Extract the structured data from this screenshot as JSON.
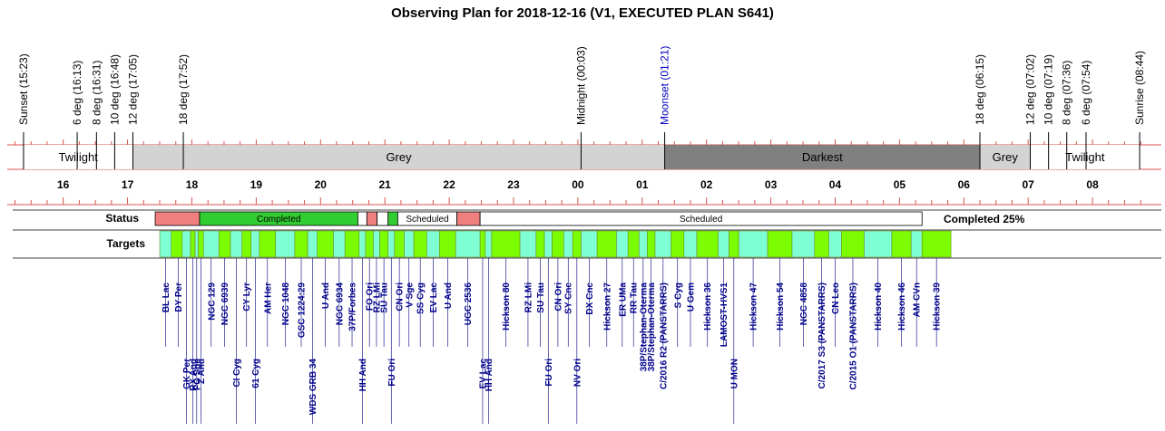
{
  "chart_data": {
    "type": "timeline",
    "title": "Observing Plan for 2018-12-16 (V1, EXECUTED PLAN S641)",
    "axis": {
      "start_hour": 15.13,
      "end_hour": 32.83,
      "hour_labels": [
        {
          "h": 16,
          "label": "16"
        },
        {
          "h": 17,
          "label": "17"
        },
        {
          "h": 18,
          "label": "18"
        },
        {
          "h": 19,
          "label": "19"
        },
        {
          "h": 20,
          "label": "20"
        },
        {
          "h": 21,
          "label": "21"
        },
        {
          "h": 22,
          "label": "22"
        },
        {
          "h": 23,
          "label": "23"
        },
        {
          "h": 24,
          "label": "00"
        },
        {
          "h": 25,
          "label": "01"
        },
        {
          "h": 26,
          "label": "02"
        },
        {
          "h": 27,
          "label": "03"
        },
        {
          "h": 28,
          "label": "04"
        },
        {
          "h": 29,
          "label": "05"
        },
        {
          "h": 30,
          "label": "06"
        },
        {
          "h": 31,
          "label": "07"
        },
        {
          "h": 32,
          "label": "08"
        }
      ]
    },
    "events": [
      {
        "label": "Sunset (15:23)",
        "h": 15.383,
        "moon": false
      },
      {
        "label": "6 deg (16:13)",
        "h": 16.217,
        "moon": false
      },
      {
        "label": "8 deg (16:31)",
        "h": 16.517,
        "moon": false
      },
      {
        "label": "10 deg (16:48)",
        "h": 16.8,
        "moon": false
      },
      {
        "label": "12 deg (17:05)",
        "h": 17.083,
        "moon": false
      },
      {
        "label": "18 deg (17:52)",
        "h": 17.867,
        "moon": false
      },
      {
        "label": "Midnight (00:03)",
        "h": 24.05,
        "moon": false
      },
      {
        "label": "Moonset (01:21)",
        "h": 25.35,
        "moon": true
      },
      {
        "label": "18 deg (06:15)",
        "h": 30.25,
        "moon": false
      },
      {
        "label": "12 deg (07:02)",
        "h": 31.033,
        "moon": false
      },
      {
        "label": "10 deg (07:19)",
        "h": 31.317,
        "moon": false
      },
      {
        "label": "8 deg (07:36)",
        "h": 31.6,
        "moon": false
      },
      {
        "label": "6 deg (07:54)",
        "h": 31.9,
        "moon": false
      },
      {
        "label": "Sunrise (08:44)",
        "h": 32.733,
        "moon": false
      }
    ],
    "periods": [
      {
        "label": "Twilight",
        "start": 15.383,
        "end": 17.083,
        "color": "#ffffff",
        "text_color": "#000000"
      },
      {
        "label": "Grey",
        "start": 17.083,
        "end": 25.35,
        "color": "#d3d3d3",
        "text_color": "#000000"
      },
      {
        "label": "Darkest",
        "start": 25.35,
        "end": 30.25,
        "color": "#808080",
        "text_color": "#ffffff"
      },
      {
        "label": "Grey",
        "start": 30.25,
        "end": 31.033,
        "color": "#d3d3d3",
        "text_color": "#000000"
      },
      {
        "label": "Twilight",
        "start": 31.033,
        "end": 32.733,
        "color": "#ffffff",
        "text_color": "#000000"
      }
    ],
    "status_label": "Status",
    "targets_label": "Targets",
    "summary": "Completed 25%",
    "status": [
      {
        "start": 17.43,
        "end": 18.12,
        "state": "failed",
        "label": ""
      },
      {
        "start": 18.12,
        "end": 20.58,
        "state": "completed",
        "label": "Completed"
      },
      {
        "start": 20.58,
        "end": 20.72,
        "state": "scheduled",
        "label": ""
      },
      {
        "start": 20.72,
        "end": 20.88,
        "state": "failed",
        "label": ""
      },
      {
        "start": 20.88,
        "end": 21.05,
        "state": "scheduled",
        "label": ""
      },
      {
        "start": 21.05,
        "end": 21.2,
        "state": "completed",
        "label": ""
      },
      {
        "start": 21.2,
        "end": 22.12,
        "state": "scheduled",
        "label": "Scheduled"
      },
      {
        "start": 22.12,
        "end": 22.48,
        "state": "failed",
        "label": ""
      },
      {
        "start": 22.48,
        "end": 29.35,
        "state": "scheduled",
        "label": "Scheduled"
      }
    ],
    "status_colors": {
      "failed": "#f08080",
      "completed": "#32cd32",
      "scheduled": "#ffffff"
    },
    "target_colors": [
      "#7fffd4",
      "#7cfc00"
    ],
    "targets": [
      {
        "name": "BL Lac",
        "h": 17.5,
        "end": 17.68,
        "row": 0
      },
      {
        "name": "DY Per",
        "h": 17.68,
        "end": 17.9,
        "row": 0
      },
      {
        "name": "GK Per",
        "h": 17.85,
        "end": 17.98,
        "row": 1
      },
      {
        "name": "RX And",
        "h": 17.98,
        "end": 18.05,
        "row": 1
      },
      {
        "name": "FG Sge",
        "h": 18.05,
        "end": 18.1,
        "row": 1
      },
      {
        "name": "Z And",
        "h": 18.1,
        "end": 18.18,
        "row": 1
      },
      {
        "name": "NGC 129",
        "h": 18.18,
        "end": 18.42,
        "row": 0
      },
      {
        "name": "NGC 6939",
        "h": 18.42,
        "end": 18.6,
        "row": 0
      },
      {
        "name": "CI Cyg",
        "h": 18.6,
        "end": 18.78,
        "row": 1
      },
      {
        "name": "CY Lyr",
        "h": 18.78,
        "end": 18.92,
        "row": 0
      },
      {
        "name": "61 Cyg",
        "h": 18.92,
        "end": 19.05,
        "row": 1
      },
      {
        "name": "AM Her",
        "h": 19.05,
        "end": 19.3,
        "row": 0
      },
      {
        "name": "NGC 1048",
        "h": 19.3,
        "end": 19.6,
        "row": 0
      },
      {
        "name": "GSC 1224:29",
        "h": 19.6,
        "end": 19.8,
        "row": 0
      },
      {
        "name": "WDS GRB 34",
        "h": 19.8,
        "end": 19.95,
        "row": 1
      },
      {
        "name": "U And",
        "h": 19.95,
        "end": 20.2,
        "row": 0
      },
      {
        "name": "NGC 6934",
        "h": 20.2,
        "end": 20.38,
        "row": 0
      },
      {
        "name": "37P/Forbes",
        "h": 20.38,
        "end": 20.6,
        "row": 0
      },
      {
        "name": "HH And",
        "h": 20.6,
        "end": 20.7,
        "row": 1
      },
      {
        "name": "FO Ori",
        "h": 20.7,
        "end": 20.82,
        "row": 0
      },
      {
        "name": "RZ LMi",
        "h": 20.82,
        "end": 20.92,
        "row": 0
      },
      {
        "name": "SU Tau",
        "h": 20.92,
        "end": 21.05,
        "row": 0
      },
      {
        "name": "FU Ori",
        "h": 21.05,
        "end": 21.15,
        "row": 1
      },
      {
        "name": "CN Ori",
        "h": 21.15,
        "end": 21.3,
        "row": 0
      },
      {
        "name": "V Sge",
        "h": 21.3,
        "end": 21.45,
        "row": 0
      },
      {
        "name": "SS Cyg",
        "h": 21.45,
        "end": 21.65,
        "row": 0
      },
      {
        "name": "EV Lac",
        "h": 21.65,
        "end": 21.85,
        "row": 0
      },
      {
        "name": "U And",
        "h": 21.85,
        "end": 22.1,
        "row": 0
      },
      {
        "name": "UGC 2536",
        "h": 22.1,
        "end": 22.48,
        "row": 0
      },
      {
        "name": "EV Lac",
        "h": 22.48,
        "end": 22.56,
        "row": 1
      },
      {
        "name": "HH And",
        "h": 22.56,
        "end": 22.66,
        "row": 1
      },
      {
        "name": "Hickson 80",
        "h": 22.66,
        "end": 23.1,
        "row": 0
      },
      {
        "name": "RZ LMi",
        "h": 23.1,
        "end": 23.35,
        "row": 0
      },
      {
        "name": "SU Tau",
        "h": 23.35,
        "end": 23.48,
        "row": 0
      },
      {
        "name": "FU Ori",
        "h": 23.48,
        "end": 23.6,
        "row": 1
      },
      {
        "name": "CN Ori",
        "h": 23.6,
        "end": 23.78,
        "row": 0
      },
      {
        "name": "SY Cnc",
        "h": 23.78,
        "end": 23.92,
        "row": 0
      },
      {
        "name": "NV Ori",
        "h": 23.92,
        "end": 24.05,
        "row": 1
      },
      {
        "name": "DX Cnc",
        "h": 24.05,
        "end": 24.3,
        "row": 0
      },
      {
        "name": "Hickson 27",
        "h": 24.3,
        "end": 24.6,
        "row": 0
      },
      {
        "name": "ER UMa",
        "h": 24.6,
        "end": 24.78,
        "row": 0
      },
      {
        "name": "RR Tau",
        "h": 24.78,
        "end": 24.95,
        "row": 0
      },
      {
        "name": "38P/Stephan-Oterma",
        "h": 24.95,
        "end": 25.08,
        "row": 0
      },
      {
        "name": "38P/Stephan-Oterma",
        "h": 25.08,
        "end": 25.2,
        "row": 0
      },
      {
        "name": "C/2016 R2 (PANSTARRS)",
        "h": 25.2,
        "end": 25.45,
        "row": 0
      },
      {
        "name": "S Cyg",
        "h": 25.45,
        "end": 25.65,
        "row": 0
      },
      {
        "name": "U Gem",
        "h": 25.65,
        "end": 25.85,
        "row": 0
      },
      {
        "name": "Hickson 36",
        "h": 25.85,
        "end": 26.18,
        "row": 0
      },
      {
        "name": "LAMOST-HVS1",
        "h": 26.18,
        "end": 26.35,
        "row": 0
      },
      {
        "name": "U MON",
        "h": 26.35,
        "end": 26.5,
        "row": 1
      },
      {
        "name": "Hickson 47",
        "h": 26.5,
        "end": 26.95,
        "row": 0
      },
      {
        "name": "Hickson 54",
        "h": 26.95,
        "end": 27.33,
        "row": 0
      },
      {
        "name": "NGC 4858",
        "h": 27.33,
        "end": 27.68,
        "row": 0
      },
      {
        "name": "C/2017 S3 (PANSTARRS)",
        "h": 27.68,
        "end": 27.9,
        "row": 0
      },
      {
        "name": "CN Leo",
        "h": 27.9,
        "end": 28.1,
        "row": 0
      },
      {
        "name": "C/2015 O1 (PANSTARRS)",
        "h": 28.1,
        "end": 28.45,
        "row": 0
      },
      {
        "name": "Hickson 40",
        "h": 28.45,
        "end": 28.88,
        "row": 0
      },
      {
        "name": "Hickson 46",
        "h": 28.88,
        "end": 29.18,
        "row": 0
      },
      {
        "name": "AM CVn",
        "h": 29.18,
        "end": 29.35,
        "row": 0
      },
      {
        "name": "Hickson 39",
        "h": 29.35,
        "end": 29.8,
        "row": 0
      }
    ]
  }
}
